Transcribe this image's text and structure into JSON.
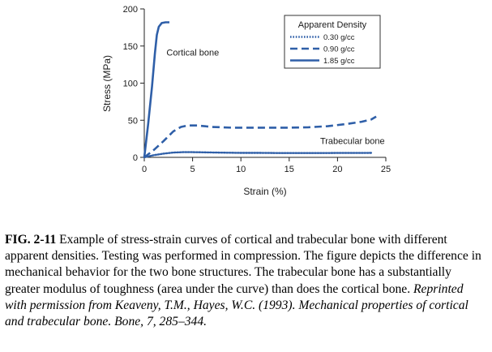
{
  "chart_data": {
    "type": "line",
    "xlabel": "Strain (%)",
    "ylabel": "Stress (MPa)",
    "xlim": [
      0,
      25
    ],
    "ylim": [
      0,
      200
    ],
    "xticks": [
      0,
      5,
      10,
      15,
      20,
      25
    ],
    "yticks": [
      0,
      50,
      100,
      150,
      200
    ],
    "grid": false,
    "legend": {
      "title": "Apparent Density",
      "position": "top-right"
    },
    "series": [
      {
        "name": "0.30 g/cc",
        "style": "dotted",
        "color": "#2f5fa8",
        "x": [
          0,
          0.5,
          1,
          2,
          3,
          4,
          5,
          6,
          8,
          10,
          12,
          14,
          16,
          18,
          20,
          22,
          23.5
        ],
        "y": [
          0,
          1.5,
          3,
          5,
          6.5,
          7,
          7,
          6.8,
          6.3,
          6,
          6,
          5.8,
          5.8,
          5.8,
          5.9,
          5.9,
          6
        ]
      },
      {
        "name": "0.90 g/cc",
        "style": "dashed",
        "color": "#2f5fa8",
        "x": [
          0,
          1,
          2,
          3,
          3.8,
          4.5,
          5.5,
          7,
          9,
          11,
          13,
          15,
          17,
          19,
          21,
          22.5,
          23.5,
          24
        ],
        "y": [
          0,
          10,
          22,
          35,
          41,
          43,
          43,
          41,
          40,
          40,
          40,
          40,
          40.5,
          42,
          45,
          48,
          51,
          55
        ]
      },
      {
        "name": "1.85 g/cc",
        "style": "solid",
        "color": "#2f5fa8",
        "x": [
          0,
          0.4,
          0.8,
          1.1,
          1.3,
          1.5,
          1.8,
          2.2,
          2.6
        ],
        "y": [
          0,
          45,
          95,
          140,
          165,
          176,
          181,
          182,
          182
        ]
      }
    ],
    "annotations": [
      {
        "text": "Cortical bone",
        "x": 2.3,
        "y": 137
      },
      {
        "text": "Trabecular bone",
        "x": 18.2,
        "y": 18
      }
    ]
  },
  "caption": {
    "fig_num": "FIG. 2-11",
    "text": " Example of stress-strain curves of cortical and trabecular bone with different apparent densities. Testing was performed in compression. The figure depicts the difference in mechanical behavior for the two bone structures. The trabecular bone has a substantially greater modulus of toughness (area under the curve) than does the cortical bone. ",
    "credit": "Reprinted with permission from Keaveny, T.M., Hayes, W.C. (1993). Mechanical properties of cortical and trabecular bone. Bone, 7, 285–344."
  }
}
